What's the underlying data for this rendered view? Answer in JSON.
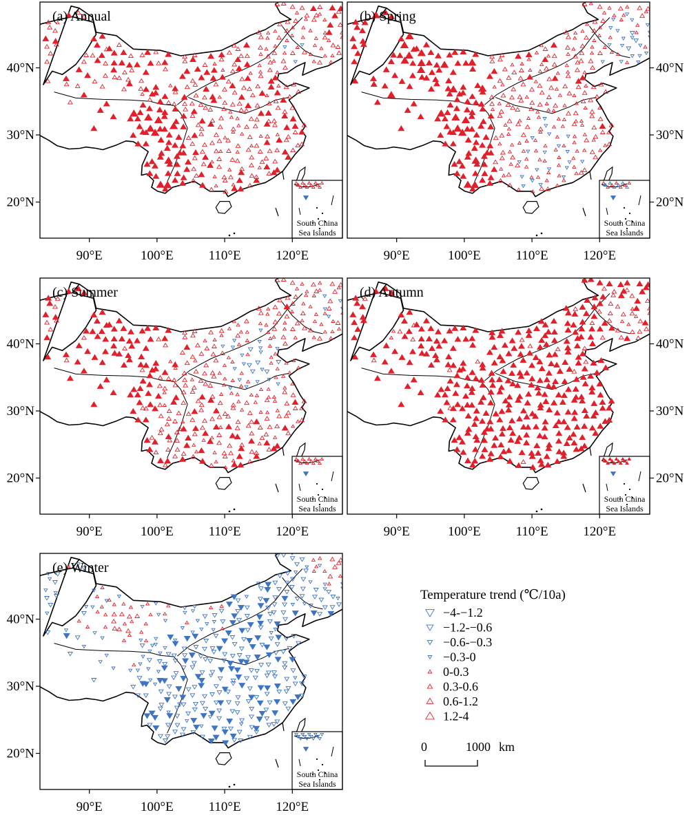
{
  "figure": {
    "panels": [
      {
        "id": "a",
        "title": "(a) Annual",
        "yaxis_side": "left"
      },
      {
        "id": "b",
        "title": "(b) Spring",
        "yaxis_side": "right"
      },
      {
        "id": "c",
        "title": "(c) Summer",
        "yaxis_side": "left"
      },
      {
        "id": "d",
        "title": "(d) Autumn",
        "yaxis_side": "right"
      },
      {
        "id": "e",
        "title": "(e) Winter",
        "yaxis_side": "left"
      }
    ],
    "lat_ticks": [
      "40°N",
      "30°N",
      "20°N"
    ],
    "lon_ticks": [
      "90°E",
      "100°E",
      "110°E",
      "120°E"
    ],
    "inset": {
      "line1": "South China",
      "line2": "Sea Islands"
    },
    "colors": {
      "warming": "#e0202a",
      "cooling": "#3e74c4",
      "boundary": "#000000"
    }
  },
  "legend": {
    "title": "Temperature trend (℃/10a)",
    "items": [
      {
        "label": "−4-−1.2",
        "type": "cooling"
      },
      {
        "label": "−1.2-−0.6",
        "type": "cooling"
      },
      {
        "label": "−0.6-−0.3",
        "type": "cooling"
      },
      {
        "label": "−0.3-0",
        "type": "cooling"
      },
      {
        "label": "0-0.3",
        "type": "warming"
      },
      {
        "label": "0.3-0.6",
        "type": "warming"
      },
      {
        "label": "0.6-1.2",
        "type": "warming"
      },
      {
        "label": "1.2-4",
        "type": "warming"
      }
    ]
  },
  "scale_bar": {
    "start": "0",
    "end": "1000",
    "unit": "km"
  }
}
